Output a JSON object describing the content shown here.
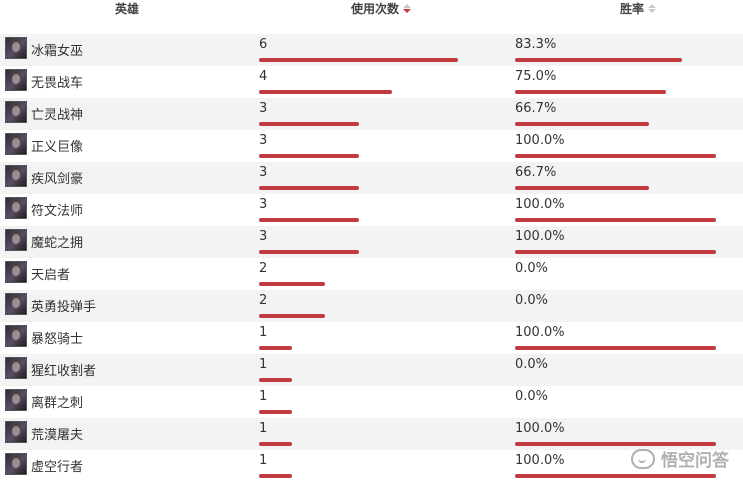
{
  "header": {
    "hero_label": "英雄",
    "uses_label": "使用次数",
    "winrate_label": "胜率"
  },
  "rows": [
    {
      "hero": "冰霜女巫",
      "uses": "6",
      "winrate": "83.3%",
      "uses_fill": 0.6,
      "win_fill": 0.833
    },
    {
      "hero": "无畏战车",
      "uses": "4",
      "winrate": "75.0%",
      "uses_fill": 0.4,
      "win_fill": 0.75
    },
    {
      "hero": "亡灵战神",
      "uses": "3",
      "winrate": "66.7%",
      "uses_fill": 0.3,
      "win_fill": 0.667
    },
    {
      "hero": "正义巨像",
      "uses": "3",
      "winrate": "100.0%",
      "uses_fill": 0.3,
      "win_fill": 1.0
    },
    {
      "hero": "疾风剑豪",
      "uses": "3",
      "winrate": "66.7%",
      "uses_fill": 0.3,
      "win_fill": 0.667
    },
    {
      "hero": "符文法师",
      "uses": "3",
      "winrate": "100.0%",
      "uses_fill": 0.3,
      "win_fill": 1.0
    },
    {
      "hero": "魔蛇之拥",
      "uses": "3",
      "winrate": "100.0%",
      "uses_fill": 0.3,
      "win_fill": 1.0
    },
    {
      "hero": "天启者",
      "uses": "2",
      "winrate": "0.0%",
      "uses_fill": 0.2,
      "win_fill": 0
    },
    {
      "hero": "英勇投弹手",
      "uses": "2",
      "winrate": "0.0%",
      "uses_fill": 0.2,
      "win_fill": 0
    },
    {
      "hero": "暴怒骑士",
      "uses": "1",
      "winrate": "100.0%",
      "uses_fill": 0.1,
      "win_fill": 1.0
    },
    {
      "hero": "猩红收割者",
      "uses": "1",
      "winrate": "0.0%",
      "uses_fill": 0.1,
      "win_fill": 0
    },
    {
      "hero": "离群之刺",
      "uses": "1",
      "winrate": "0.0%",
      "uses_fill": 0.1,
      "win_fill": 0
    },
    {
      "hero": "荒漠屠夫",
      "uses": "1",
      "winrate": "100.0%",
      "uses_fill": 0.1,
      "win_fill": 1.0
    },
    {
      "hero": "虚空行者",
      "uses": "1",
      "winrate": "100.0%",
      "uses_fill": 0.1,
      "win_fill": 1.0
    }
  ],
  "colors": {
    "bar": "#c13a3f",
    "row_alt": "#f3f3f3",
    "sort_active": "#c0393b"
  },
  "watermark": {
    "text": "悟空问答",
    "icon": "wukong-logo-icon"
  }
}
